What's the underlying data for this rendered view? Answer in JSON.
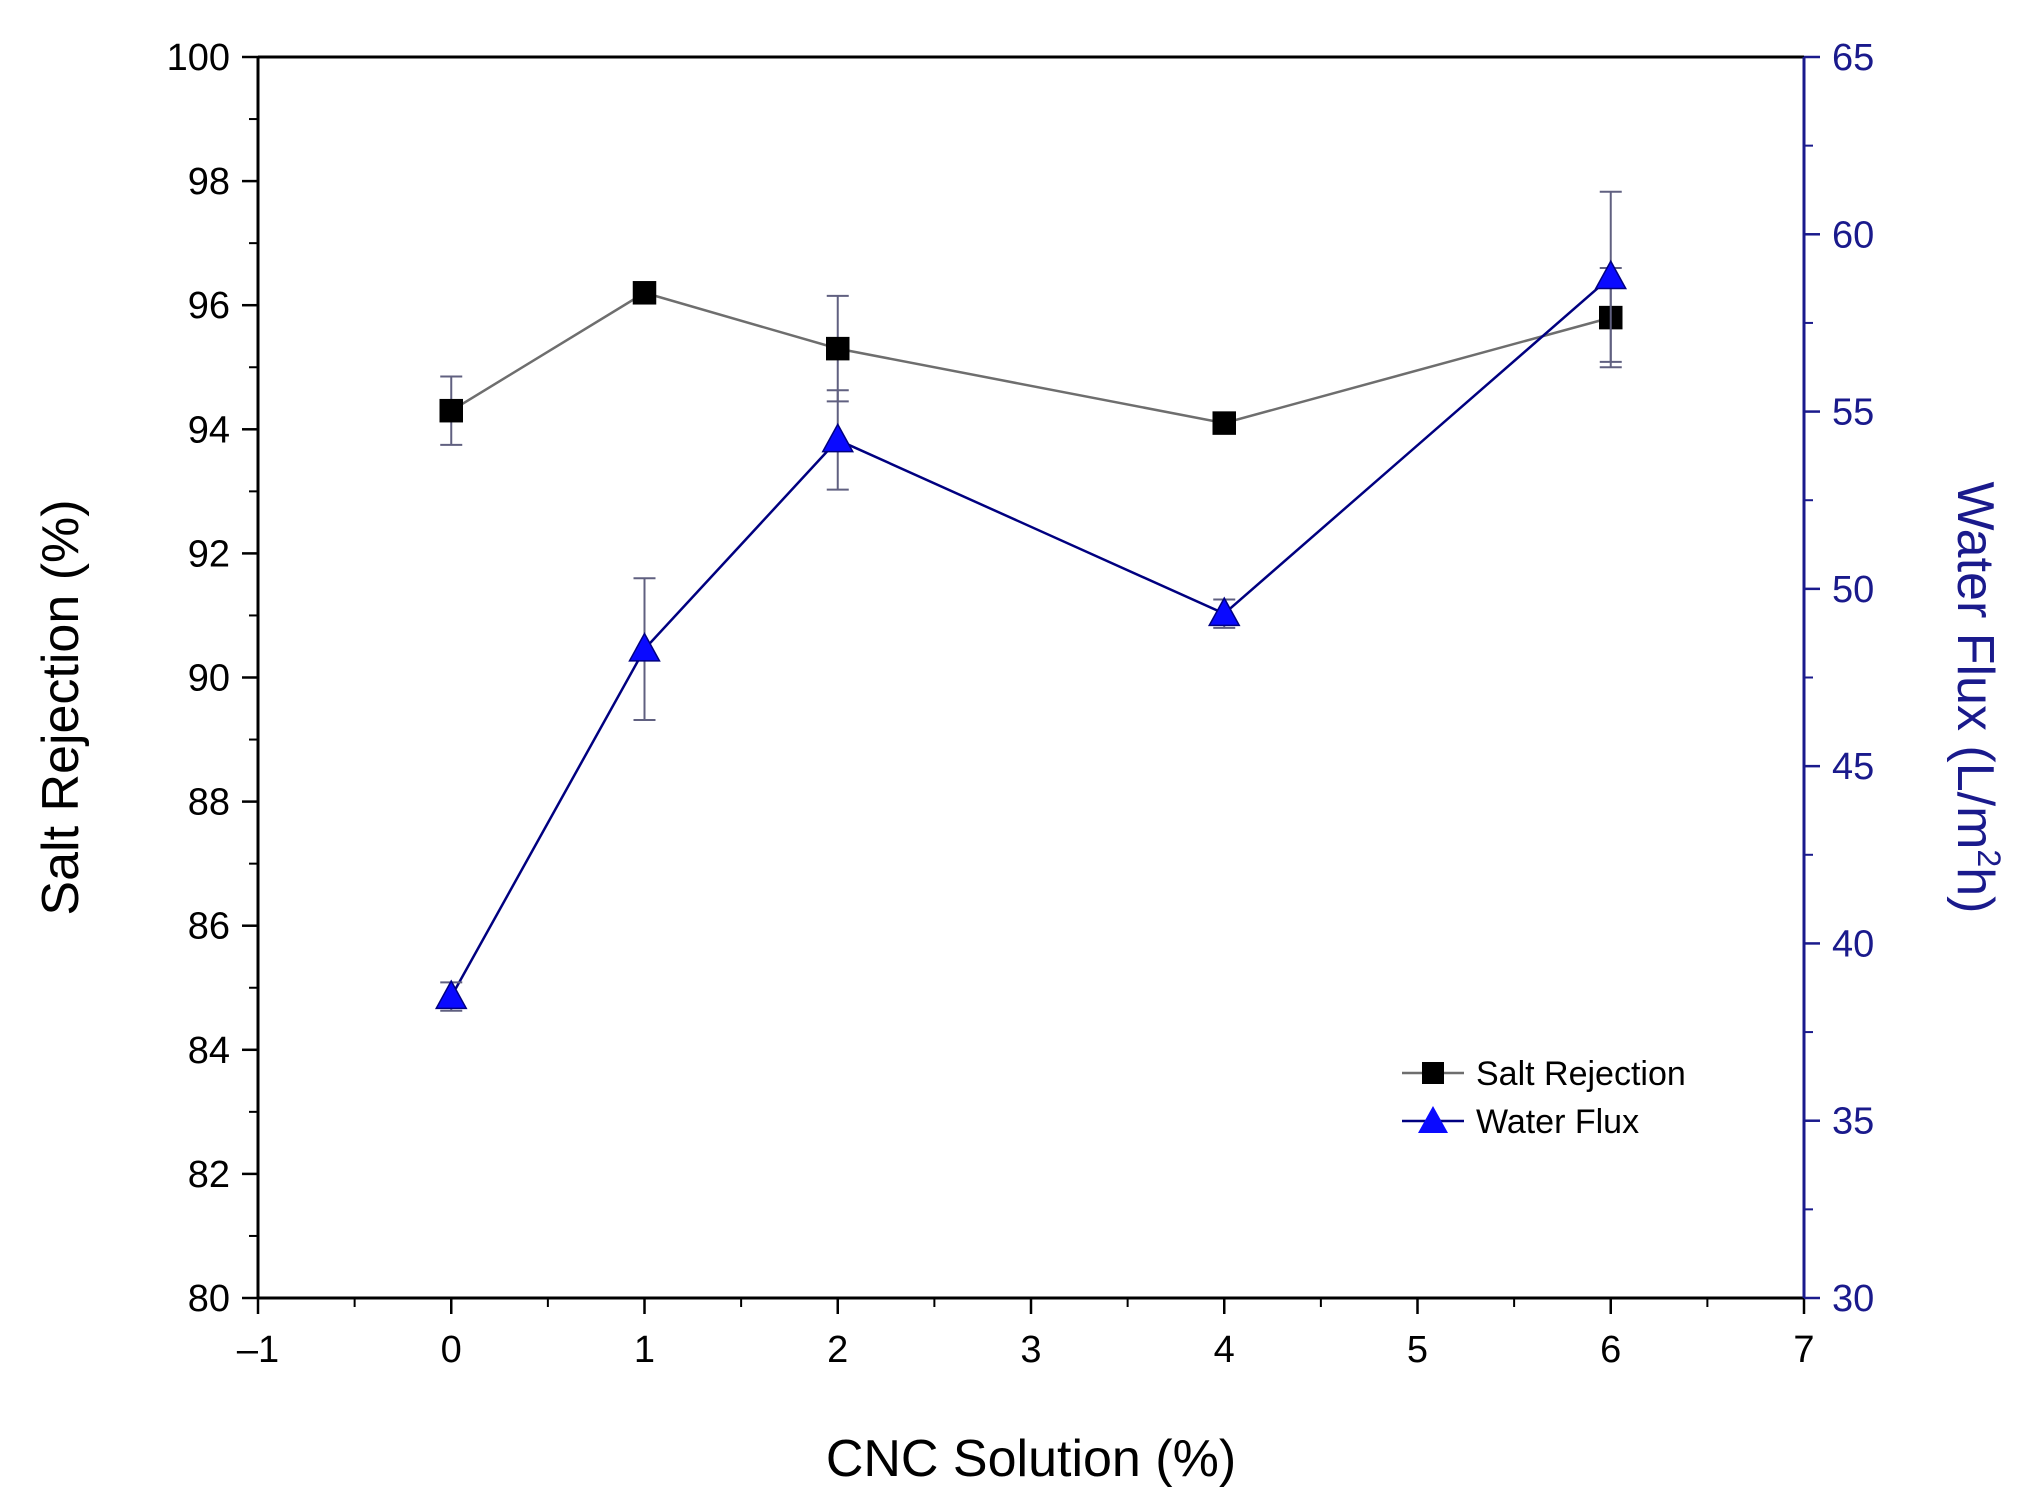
{
  "chart_data": {
    "type": "line",
    "title": "",
    "xlabel": "CNC Solution (%)",
    "ylabel": "Salt Rejection (%)",
    "y2label_main": "Water Flux (L/m",
    "y2label_sup": "2",
    "y2label_end": "h)",
    "xlim": [
      -1,
      7
    ],
    "xticks": [
      -1,
      0,
      1,
      2,
      3,
      4,
      5,
      6,
      7
    ],
    "xtick_labels": [
      "–1",
      "0",
      "1",
      "2",
      "3",
      "4",
      "5",
      "6",
      "7"
    ],
    "categories": [
      "0",
      "1",
      "2",
      "4",
      "6"
    ],
    "x_positions": [
      0,
      1,
      2,
      4,
      6
    ],
    "ylim": [
      80,
      100
    ],
    "yticks": [
      80,
      82,
      84,
      86,
      88,
      90,
      92,
      94,
      96,
      98,
      100
    ],
    "ylim_right": [
      30,
      65
    ],
    "yticks_right": [
      30,
      35,
      40,
      45,
      50,
      55,
      60,
      65
    ],
    "grid": false,
    "legend_position": "lower-right",
    "series": [
      {
        "name": "Salt Rejection",
        "axis": "left",
        "marker": "square",
        "color": "#000000",
        "line_color": "#6e6e6e",
        "values": [
          94.3,
          96.2,
          95.3,
          94.1,
          95.8
        ],
        "errors": [
          0.55,
          0.15,
          0.85,
          0.1,
          0.8
        ]
      },
      {
        "name": "Water Flux",
        "axis": "right",
        "marker": "triangle",
        "color": "#0a0aff",
        "line_color": "#000080",
        "values": [
          38.5,
          48.3,
          54.2,
          49.3,
          58.8
        ],
        "errors": [
          0.4,
          2.0,
          1.4,
          0.4,
          2.4
        ]
      }
    ],
    "colors": {
      "right_axis": "#1a1a8c",
      "left_axis": "#000000",
      "error_bar": "#606080"
    }
  }
}
